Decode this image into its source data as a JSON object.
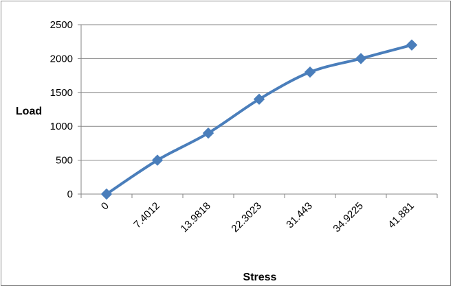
{
  "chart_data": {
    "type": "line",
    "title": "",
    "xlabel": "Stress",
    "ylabel": "Load",
    "categories": [
      "0",
      "7.4012",
      "13.9818",
      "22.3023",
      "31.443",
      "34.9225",
      "41.881"
    ],
    "series": [
      {
        "values": [
          0,
          500,
          900,
          1400,
          1800,
          2000,
          2200
        ],
        "color": "#4a7ebb",
        "marker": "diamond"
      }
    ],
    "ylim": [
      0,
      2500
    ],
    "yticks": [
      0,
      500,
      1000,
      1500,
      2000,
      2500
    ],
    "grid": "horizontal",
    "legend": "none"
  }
}
